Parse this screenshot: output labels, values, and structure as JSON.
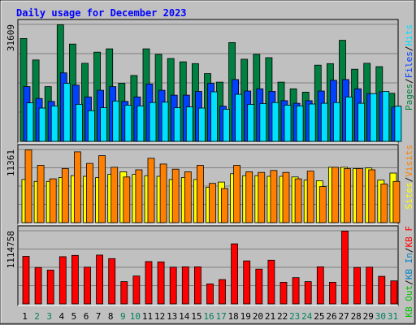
{
  "chart_data": {
    "type": "bar",
    "title": "Daily usage for December 2023",
    "days": [
      "1",
      "2",
      "3",
      "4",
      "5",
      "6",
      "7",
      "8",
      "9",
      "10",
      "11",
      "12",
      "13",
      "14",
      "15",
      "16",
      "17",
      "18",
      "19",
      "20",
      "21",
      "22",
      "23",
      "24",
      "25",
      "26",
      "27",
      "28",
      "29",
      "30",
      "31"
    ],
    "weekend_days": [
      "2",
      "3",
      "9",
      "10",
      "16",
      "17",
      "23",
      "24",
      "30",
      "31"
    ],
    "colors": {
      "hits": "#008040",
      "files": "#0040ff",
      "pages": "#00e0ff",
      "visits": "#ffff00",
      "sites": "#ff8000",
      "kbin": "#0080c0",
      "kbout": "#00c000",
      "kbf": "#ff0000",
      "weekday_label": "#000000",
      "weekend_label": "#00805c"
    },
    "panels": [
      {
        "name": "requests",
        "ymax_label": "31609",
        "ymax": 31609,
        "series": [
          {
            "name": "Hits",
            "values": [
              27800,
              22000,
              14800,
              31500,
              26300,
              21100,
              24100,
              25000,
              15700,
              17800,
              25000,
              23500,
              22400,
              21500,
              21000,
              18300,
              16000,
              26700,
              22200,
              23500,
              22600,
              16000,
              14200,
              13300,
              20600,
              21000,
              27300,
              19500,
              21100,
              20200,
              13000
            ]
          },
          {
            "name": "Files",
            "values": [
              14800,
              11600,
              10800,
              18500,
              15200,
              12000,
              13800,
              14800,
              10800,
              12000,
              15500,
              13800,
              12500,
              12500,
              13500,
              15700,
              9500,
              16700,
              13600,
              14200,
              13500,
              11000,
              10300,
              11000,
              13600,
              16500,
              16700,
              14200,
              12900,
              13400,
              9300
            ]
          },
          {
            "name": "Pages",
            "values": [
              10400,
              9000,
              9600,
              15700,
              10000,
              8300,
              9100,
              10900,
              9800,
              9600,
              10500,
              10600,
              9100,
              9300,
              9000,
              13400,
              8700,
              12700,
              10000,
              10200,
              10500,
              9800,
              9600,
              10100,
              10300,
              10500,
              12000,
              10300,
              12900,
              13500,
              9500
            ]
          }
        ]
      },
      {
        "name": "visitors",
        "ymax_label": "11361",
        "ymax": 11361,
        "series": [
          {
            "name": "Visits",
            "values": [
              6700,
              6400,
              6400,
              7000,
              7300,
              7200,
              7000,
              7500,
              7900,
              7500,
              7300,
              7200,
              6700,
              7000,
              6700,
              5500,
              6300,
              7600,
              7300,
              7300,
              7200,
              7200,
              7100,
              6600,
              6500,
              8600,
              8600,
              8400,
              8500,
              6600,
              7700
            ]
          },
          {
            "name": "Sites",
            "values": [
              11300,
              8900,
              6800,
              8400,
              11000,
              9200,
              10400,
              8600,
              7100,
              8200,
              10000,
              9100,
              8300,
              7900,
              8900,
              6100,
              5300,
              8900,
              7900,
              7800,
              8100,
              7800,
              6800,
              8000,
              5600,
              8600,
              8400,
              8400,
              8200,
              6000,
              6400
            ]
          }
        ]
      },
      {
        "name": "kbytes",
        "ymax_label": "1114758",
        "ymax": 1114758,
        "series": [
          {
            "name": "KBytes",
            "values": [
              725000,
              555000,
              515000,
              720000,
              740000,
              560000,
              745000,
              690000,
              340000,
              425000,
              645000,
              640000,
              560000,
              565000,
              565000,
              305000,
              370000,
              915000,
              655000,
              530000,
              665000,
              330000,
              400000,
              340000,
              565000,
              330000,
              1110000,
              555000,
              560000,
              420000,
              350000
            ]
          }
        ]
      }
    ],
    "legend": {
      "panel1": [
        "Hits",
        "/",
        "Files",
        "/",
        "Pages"
      ],
      "panel2": [
        "Visits",
        "/",
        "Sites"
      ],
      "panel3": [
        "KB F",
        "/",
        "KB In",
        "/",
        "KB Out"
      ]
    }
  }
}
